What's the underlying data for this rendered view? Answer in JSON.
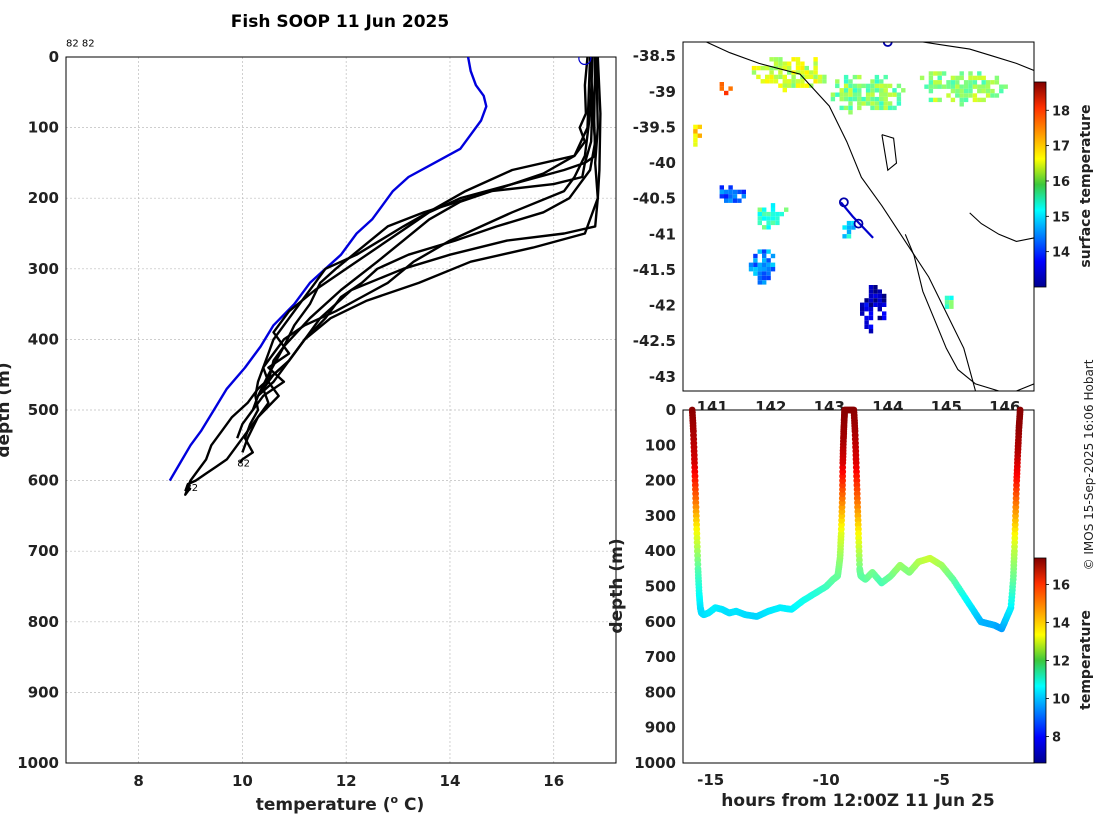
{
  "figure_title": "Fish SOOP 11 Jun 2025",
  "credit": "© IMOS 15-Sep-2025 16:06 Hobart",
  "colors": {
    "profile": "#000000",
    "climatology": "#0000dd",
    "coast": "#000000",
    "track": "#0000cc"
  },
  "chart_data": [
    {
      "type": "line",
      "name": "temperature-depth profiles",
      "title": "Fish SOOP 11 Jun 2025",
      "xlabel": "temperature (° C)",
      "xlabel_main": "temperature (",
      "xlabel_sup": "o",
      "xlabel_end": " C)",
      "ylabel": "depth (m)",
      "xlim": [
        6.6,
        17.2
      ],
      "ylim": [
        0,
        1000
      ],
      "y_reversed": true,
      "xticks": [
        8,
        10,
        12,
        14,
        16
      ],
      "yticks": [
        0,
        100,
        200,
        300,
        400,
        500,
        600,
        700,
        800,
        900,
        1000
      ],
      "grid": true,
      "labels": [
        {
          "text": "82 82",
          "x": 6.6,
          "y": -15
        },
        {
          "text": "82",
          "x": 9.9,
          "y": 580
        },
        {
          "text": "82",
          "x": 8.9,
          "y": 615
        }
      ],
      "surface_marker": {
        "x": 16.6,
        "y": 2
      },
      "series": [
        {
          "name": "climatology",
          "color": "#0000dd",
          "x": [
            14.35,
            14.4,
            14.5,
            14.65,
            14.7,
            14.6,
            14.4,
            14.2,
            13.7,
            13.2,
            12.9,
            12.7,
            12.5,
            12.2,
            11.9,
            11.6,
            11.3,
            11.0,
            10.6,
            10.35,
            10.05,
            9.7,
            9.45,
            9.2,
            9.0,
            8.8,
            8.6
          ],
          "y": [
            0,
            20,
            40,
            55,
            70,
            90,
            110,
            130,
            150,
            170,
            190,
            210,
            230,
            250,
            280,
            300,
            320,
            350,
            380,
            410,
            440,
            470,
            500,
            530,
            550,
            575,
            600
          ]
        },
        {
          "name": "cast-1",
          "color": "#000000",
          "x": [
            16.65,
            16.6,
            16.62,
            16.5,
            16.6,
            16.4,
            15.2,
            14.3,
            13.1,
            12.2,
            11.6,
            11.4,
            11.2,
            10.9,
            10.6,
            10.5,
            10.4,
            10.3,
            10.25,
            10.3,
            10.15,
            10.05,
            10.2,
            10.0,
            9.95
          ],
          "y": [
            0,
            40,
            80,
            100,
            120,
            140,
            160,
            190,
            240,
            280,
            300,
            320,
            340,
            370,
            400,
            420,
            440,
            460,
            480,
            500,
            520,
            540,
            560,
            570,
            575
          ]
        },
        {
          "name": "cast-2",
          "color": "#000000",
          "x": [
            16.7,
            16.75,
            16.72,
            16.6,
            16.55,
            16.0,
            14.8,
            13.5,
            12.8,
            12.3,
            11.8,
            11.5,
            11.3,
            11.0,
            10.8,
            10.6,
            10.5,
            10.7,
            10.3,
            10.1,
            10.0
          ],
          "y": [
            0,
            60,
            120,
            150,
            170,
            180,
            190,
            220,
            240,
            270,
            300,
            320,
            350,
            380,
            410,
            430,
            460,
            480,
            510,
            540,
            560
          ]
        },
        {
          "name": "cast-3",
          "color": "#000000",
          "x": [
            16.8,
            16.8,
            16.75,
            16.8,
            16.7,
            16.5,
            16.3,
            15.8,
            14.9,
            14.1,
            13.2,
            12.6,
            12.3,
            11.9,
            11.6,
            11.2,
            10.9,
            10.6,
            10.3,
            10.1,
            9.8,
            9.6,
            9.4,
            9.3,
            9.1,
            9.0,
            8.95,
            8.9,
            9.0
          ],
          "y": [
            0,
            40,
            80,
            120,
            160,
            180,
            200,
            220,
            240,
            260,
            280,
            300,
            320,
            340,
            370,
            400,
            430,
            450,
            470,
            490,
            510,
            530,
            550,
            570,
            590,
            600,
            610,
            620,
            610
          ]
        },
        {
          "name": "cast-4",
          "color": "#000000",
          "x": [
            16.82,
            16.85,
            16.8,
            16.85,
            16.6,
            15.6,
            14.4,
            13.4,
            12.4,
            11.7,
            11.2,
            10.9,
            10.6,
            10.4,
            10.5,
            10.3,
            10.1,
            9.9,
            9.7,
            9.5,
            9.3,
            9.1,
            8.95,
            8.9
          ],
          "y": [
            0,
            100,
            150,
            200,
            250,
            270,
            290,
            320,
            345,
            370,
            400,
            430,
            450,
            470,
            490,
            510,
            530,
            550,
            570,
            580,
            590,
            600,
            605,
            615
          ]
        },
        {
          "name": "cast-5",
          "color": "#000000",
          "x": [
            16.85,
            16.9,
            16.88,
            16.85,
            16.8,
            16.2,
            15.1,
            14.0,
            13.1,
            12.1,
            11.5,
            11.2,
            10.9,
            10.6,
            10.3,
            10.2,
            10.0,
            9.9
          ],
          "y": [
            0,
            80,
            160,
            200,
            240,
            250,
            260,
            280,
            300,
            330,
            370,
            400,
            430,
            460,
            480,
            500,
            520,
            540
          ]
        },
        {
          "name": "cast-6",
          "color": "#000000",
          "x": [
            16.8,
            16.78,
            16.8,
            16.6,
            16.2,
            15.2,
            14.2,
            13.6,
            13.2,
            12.6,
            12.0,
            11.4,
            10.9,
            10.6,
            10.9,
            10.5,
            10.8,
            10.4,
            10.2
          ],
          "y": [
            0,
            90,
            140,
            150,
            160,
            180,
            200,
            220,
            240,
            270,
            300,
            330,
            360,
            390,
            420,
            440,
            460,
            480,
            500
          ]
        },
        {
          "name": "cast-7",
          "color": "#000000",
          "x": [
            16.75,
            16.7,
            16.6,
            16.4,
            16.2,
            15.2,
            14.6,
            14.0,
            13.3,
            12.8,
            12.3,
            11.8,
            11.2,
            10.8,
            10.6,
            10.4,
            10.5,
            10.3
          ],
          "y": [
            0,
            80,
            140,
            170,
            190,
            220,
            240,
            260,
            290,
            320,
            340,
            360,
            380,
            400,
            420,
            440,
            460,
            480
          ]
        },
        {
          "name": "cast-8",
          "color": "#000000",
          "x": [
            16.7,
            16.65,
            16.4,
            15.8,
            15.0,
            14.2,
            13.6,
            13.1,
            12.6,
            11.9,
            11.3,
            10.8,
            10.5,
            10.3
          ],
          "y": [
            0,
            100,
            140,
            165,
            185,
            205,
            230,
            260,
            290,
            330,
            370,
            410,
            450,
            480
          ]
        }
      ]
    },
    {
      "type": "heatmap",
      "name": "surface temperature map",
      "xlim": [
        140.5,
        146.5
      ],
      "ylim": [
        -43.2,
        -38.3
      ],
      "xticks": [
        141,
        142,
        143,
        144,
        145,
        146
      ],
      "yticks": [
        -38.5,
        -39,
        -39.5,
        -40,
        -40.5,
        -41,
        -41.5,
        -42,
        -42.5,
        -43
      ],
      "colorbar": {
        "label": "surface temperature",
        "range": [
          13,
          18.8
        ],
        "ticks": [
          14,
          15,
          16,
          17,
          18
        ]
      },
      "patches": [
        {
          "lon": 142.3,
          "lat": -38.7,
          "width_deg": 1.4,
          "height_deg": 0.5,
          "value": 16.3
        },
        {
          "lon": 143.6,
          "lat": -39.0,
          "width_deg": 1.3,
          "height_deg": 0.6,
          "value": 15.9
        },
        {
          "lon": 145.2,
          "lat": -38.9,
          "width_deg": 1.6,
          "height_deg": 0.5,
          "value": 16.0
        },
        {
          "lon": 141.2,
          "lat": -38.9,
          "width_deg": 0.3,
          "height_deg": 0.2,
          "value": 17.5
        },
        {
          "lon": 140.7,
          "lat": -39.6,
          "width_deg": 0.2,
          "height_deg": 0.4,
          "value": 16.8
        },
        {
          "lon": 141.3,
          "lat": -40.4,
          "width_deg": 0.5,
          "height_deg": 0.3,
          "value": 14.2
        },
        {
          "lon": 142.0,
          "lat": -40.7,
          "width_deg": 0.6,
          "height_deg": 0.4,
          "value": 15.5
        },
        {
          "lon": 141.8,
          "lat": -41.4,
          "width_deg": 0.5,
          "height_deg": 0.5,
          "value": 14.5
        },
        {
          "lon": 143.3,
          "lat": -40.9,
          "width_deg": 0.3,
          "height_deg": 0.3,
          "value": 15.0
        },
        {
          "lon": 143.7,
          "lat": -42.0,
          "width_deg": 0.5,
          "height_deg": 0.7,
          "value": 13.4
        },
        {
          "lon": 145.0,
          "lat": -41.9,
          "width_deg": 0.2,
          "height_deg": 0.2,
          "value": 15.6
        }
      ],
      "coast_lines": [
        {
          "lon": [
            140.9,
            141.3,
            141.8,
            142.5,
            143.0,
            143.3,
            143.55,
            143.9,
            144.3,
            144.7,
            145.0,
            145.3,
            145.5
          ],
          "lat": [
            -38.3,
            -38.45,
            -38.6,
            -38.75,
            -39.2,
            -39.7,
            -40.2,
            -40.6,
            -41.1,
            -41.6,
            -42.1,
            -42.6,
            -43.2
          ]
        },
        {
          "lon": [
            144.3,
            144.45,
            144.6,
            144.8,
            145.0,
            145.2,
            145.5,
            145.9,
            146.2,
            146.5
          ],
          "lat": [
            -41.0,
            -41.3,
            -41.8,
            -42.2,
            -42.6,
            -42.9,
            -43.1,
            -43.2,
            -43.2,
            -43.1
          ]
        },
        {
          "lon": [
            145.4,
            145.6,
            145.9,
            146.2,
            146.5
          ],
          "lat": [
            -40.7,
            -40.85,
            -41.0,
            -41.1,
            -41.05
          ]
        },
        {
          "lon": [
            144.6,
            145.0,
            145.4,
            145.8,
            146.2,
            146.5
          ],
          "lat": [
            -38.3,
            -38.35,
            -38.4,
            -38.5,
            -38.6,
            -38.7
          ]
        },
        {
          "lon": [
            143.9,
            144.1,
            144.15,
            144.0,
            143.9
          ],
          "lat": [
            -39.6,
            -39.65,
            -40.0,
            -40.1,
            -39.6
          ]
        }
      ],
      "track": {
        "lon": [
          143.2,
          143.4,
          143.6,
          143.75
        ],
        "lat": [
          -40.55,
          -40.75,
          -40.92,
          -41.05
        ]
      },
      "track_markers": [
        {
          "lon": 143.25,
          "lat": -40.55
        },
        {
          "lon": 143.5,
          "lat": -40.85
        },
        {
          "lon": 144.0,
          "lat": -38.3
        }
      ]
    },
    {
      "type": "scatter",
      "name": "depth vs time",
      "xlabel": "hours from 12:00Z 11 Jun 25",
      "ylabel": "depth (m)",
      "xlim": [
        -16.2,
        -1.0
      ],
      "ylim": [
        0,
        1000
      ],
      "y_reversed": true,
      "xticks": [
        -15,
        -10,
        -5
      ],
      "yticks": [
        0,
        100,
        200,
        300,
        400,
        500,
        600,
        700,
        800,
        900,
        1000
      ],
      "colorbar": {
        "label": "temperature",
        "range": [
          6.6,
          17.4
        ],
        "ticks": [
          8,
          10,
          12,
          14,
          16
        ]
      },
      "x": [
        -15.8,
        -15.75,
        -15.7,
        -15.65,
        -15.6,
        -15.55,
        -15.5,
        -15.45,
        -15.4,
        -15.3,
        -15.1,
        -14.8,
        -14.5,
        -14.2,
        -13.9,
        -13.5,
        -13.0,
        -12.5,
        -12.0,
        -11.5,
        -11.0,
        -10.5,
        -10.0,
        -9.7,
        -9.5,
        -9.4,
        -9.35,
        -9.3,
        -9.28,
        -9.25,
        -9.22,
        -9.2,
        -8.8,
        -8.75,
        -8.7,
        -8.65,
        -8.6,
        -8.55,
        -8.5,
        -8.3,
        -8.0,
        -7.6,
        -7.2,
        -6.8,
        -6.4,
        -6.0,
        -5.5,
        -5.0,
        -4.5,
        -4.0,
        -3.6,
        -3.3,
        -3.0,
        -2.7,
        -2.4,
        -2.2,
        -2.0,
        -1.9,
        -1.85,
        -1.8,
        -1.75,
        -1.7,
        -1.65,
        -1.6
      ],
      "depth": [
        0,
        60,
        150,
        250,
        350,
        450,
        520,
        560,
        575,
        580,
        575,
        560,
        565,
        575,
        570,
        580,
        585,
        570,
        560,
        565,
        540,
        520,
        500,
        480,
        470,
        420,
        350,
        250,
        150,
        80,
        30,
        0,
        0,
        60,
        150,
        250,
        350,
        450,
        470,
        480,
        460,
        490,
        470,
        440,
        460,
        430,
        420,
        440,
        480,
        530,
        570,
        600,
        605,
        610,
        620,
        590,
        560,
        480,
        400,
        300,
        200,
        120,
        50,
        0
      ],
      "temp": [
        17.3,
        17.0,
        16.5,
        15.0,
        13.2,
        11.6,
        10.8,
        10.4,
        10.3,
        10.3,
        10.4,
        10.5,
        10.4,
        10.3,
        10.4,
        10.3,
        10.2,
        10.4,
        10.5,
        10.5,
        10.8,
        11.0,
        11.3,
        11.6,
        11.7,
        12.2,
        13.0,
        14.8,
        16.4,
        17.0,
        17.2,
        17.3,
        17.3,
        17.0,
        16.4,
        15.0,
        13.4,
        11.9,
        11.7,
        11.6,
        11.9,
        11.4,
        11.8,
        12.3,
        12.0,
        12.5,
        12.8,
        12.4,
        11.7,
        10.8,
        10.3,
        9.9,
        9.8,
        9.8,
        9.6,
        10.1,
        10.5,
        11.7,
        12.6,
        14.2,
        15.8,
        16.8,
        17.2,
        17.3
      ]
    }
  ]
}
